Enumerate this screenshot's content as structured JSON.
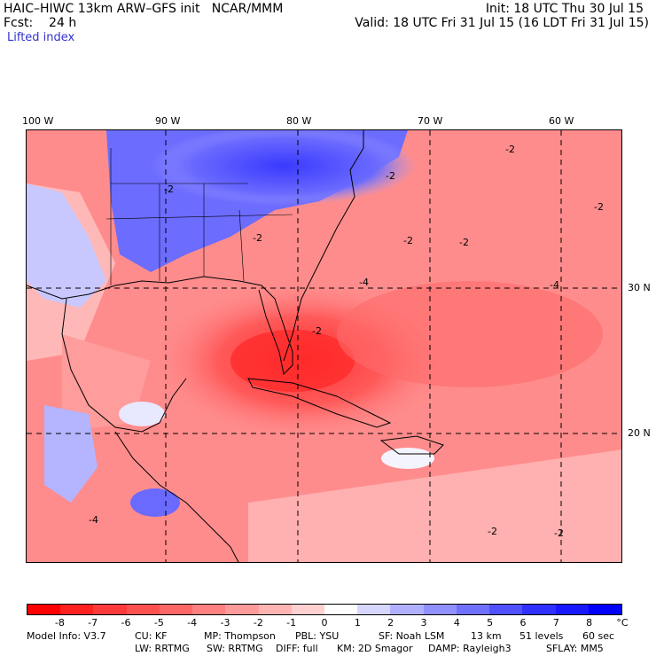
{
  "header": {
    "title_left": "HAIC–HIWC 13km ARW–GFS init   NCAR/MMM",
    "fcst_line": "Fcst:    24 h",
    "field_name": "Lifted index",
    "init_line": "Init: 18 UTC Thu 30 Jul 15",
    "valid_line": "Valid: 18 UTC Fri 31 Jul 15 (16 LDT Fri 31 Jul 15)"
  },
  "map": {
    "lon_labels": [
      "100 W",
      "90 W",
      "80 W",
      "70 W",
      "60 W"
    ],
    "lat_labels": [
      "30 N",
      "20 N"
    ],
    "contour_labels": [
      "-2",
      "-2",
      "-2",
      "-2",
      "-2",
      "-2",
      "-2",
      "-2",
      "-2",
      "-2",
      "-4",
      "-4",
      "-4"
    ]
  },
  "colorbar": {
    "labels": [
      "-8",
      "-7",
      "-6",
      "-5",
      "-4",
      "-3",
      "-2",
      "-1",
      "0",
      "1",
      "2",
      "3",
      "4",
      "5",
      "6",
      "7",
      "8",
      "°C"
    ],
    "colors": [
      "#ff0000",
      "#ff2020",
      "#ff3a3a",
      "#ff5050",
      "#ff6666",
      "#ff8080",
      "#ff9a9a",
      "#ffb4b4",
      "#ffd0d0",
      "#ffffff",
      "#d6d6ff",
      "#b0b0ff",
      "#9090ff",
      "#7070ff",
      "#5050ff",
      "#3030ff",
      "#1818ff",
      "#0000ff"
    ]
  },
  "footer": {
    "line1": [
      "Model Info: V3.7",
      "CU: KF",
      "MP: Thompson",
      "PBL: YSU",
      "SF: Noah LSM",
      "13 km",
      "51 levels",
      "60 sec"
    ],
    "line2": [
      "LW: RRTMG",
      "SW: RRTMG",
      "DIFF: full",
      "KM: 2D Smagor",
      "DAMP: Rayleigh3",
      "SFLAY: MM5"
    ]
  }
}
